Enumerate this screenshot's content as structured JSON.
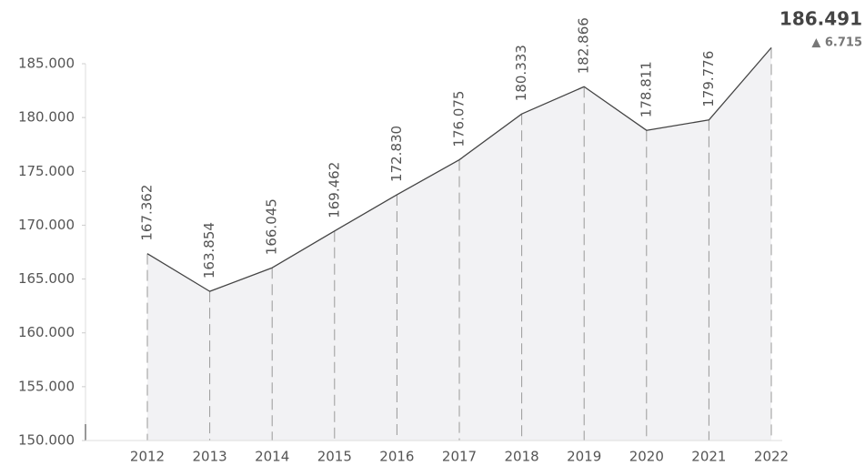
{
  "chart_data": {
    "type": "area",
    "categories": [
      "2012",
      "2013",
      "2014",
      "2015",
      "2016",
      "2017",
      "2018",
      "2019",
      "2020",
      "2021",
      "2022"
    ],
    "values": [
      167362,
      163854,
      166045,
      169462,
      172830,
      176075,
      180333,
      182866,
      178811,
      179776,
      186491
    ],
    "value_labels": [
      "167.362",
      "163.854",
      "166.045",
      "169.462",
      "172.830",
      "176.075",
      "180.333",
      "182.866",
      "178.811",
      "179.776",
      "186.491"
    ],
    "annotation": "▲ 6.715",
    "color": "#444444",
    "fill": "#f2f2f4",
    "ylim": [
      150000,
      185000
    ],
    "yticks": [
      {
        "value": 150000,
        "label": "150.000"
      },
      {
        "value": 155000,
        "label": "155.000"
      },
      {
        "value": 160000,
        "label": "160.000"
      },
      {
        "value": 165000,
        "label": "165.000"
      },
      {
        "value": 170000,
        "label": "170.000"
      },
      {
        "value": 175000,
        "label": "175.000"
      },
      {
        "value": 180000,
        "label": "180.000"
      },
      {
        "value": 185000,
        "label": "185.000"
      }
    ]
  }
}
